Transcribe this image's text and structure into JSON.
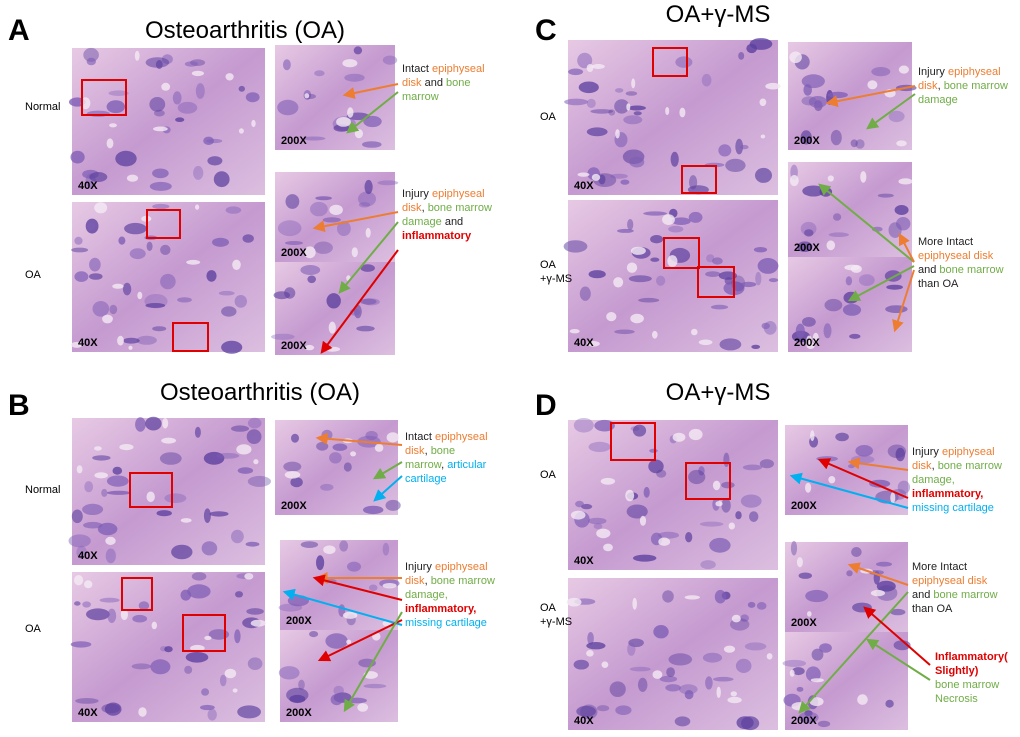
{
  "panels": [
    {
      "letter": "A",
      "title": "Osteoarthritis (OA)",
      "rows": [
        {
          "label": [
            "Normal"
          ],
          "mag": "40X"
        },
        {
          "label": [
            "OA"
          ],
          "mag": "40X"
        }
      ],
      "zooms": [
        {
          "mag": "200X"
        },
        {
          "mag": "200X"
        },
        {
          "mag": "200X"
        }
      ],
      "annotations": [
        {
          "lines": [
            [
              {
                "text": "Intact ",
                "color": "#222222"
              },
              {
                "text": "epiphyseal",
                "color": "#ed7d31"
              }
            ],
            [
              {
                "text": "disk",
                "color": "#ed7d31"
              },
              {
                "text": " and ",
                "color": "#222222"
              },
              {
                "text": "bone",
                "color": "#70ad47"
              }
            ],
            [
              {
                "text": "marrow",
                "color": "#70ad47"
              }
            ]
          ]
        },
        {
          "lines": [
            [
              {
                "text": "Injury ",
                "color": "#222222"
              },
              {
                "text": "epiphyseal",
                "color": "#ed7d31"
              }
            ],
            [
              {
                "text": "disk",
                "color": "#ed7d31"
              },
              {
                "text": ", ",
                "color": "#222222"
              },
              {
                "text": "bone marrow",
                "color": "#70ad47"
              }
            ],
            [
              {
                "text": "damage",
                "color": "#70ad47"
              },
              {
                "text": " and",
                "color": "#222222"
              }
            ],
            [
              {
                "text": "inflammatory",
                "color": "#e00000"
              }
            ]
          ]
        }
      ]
    },
    {
      "letter": "B",
      "title": "Osteoarthritis (OA)",
      "rows": [
        {
          "label": [
            "Normal"
          ],
          "mag": "40X"
        },
        {
          "label": [
            "OA"
          ],
          "mag": "40X"
        }
      ],
      "zooms": [
        {
          "mag": "200X"
        },
        {
          "mag": "200X"
        },
        {
          "mag": "200X"
        }
      ],
      "annotations": [
        {
          "lines": [
            [
              {
                "text": "Intact ",
                "color": "#222222"
              },
              {
                "text": "epiphyseal",
                "color": "#ed7d31"
              }
            ],
            [
              {
                "text": "disk",
                "color": "#ed7d31"
              },
              {
                "text": ", ",
                "color": "#222222"
              },
              {
                "text": "bone",
                "color": "#70ad47"
              }
            ],
            [
              {
                "text": "marrow",
                "color": "#70ad47"
              },
              {
                "text": ", ",
                "color": "#222222"
              },
              {
                "text": "articular",
                "color": "#00b0f0"
              }
            ],
            [
              {
                "text": "cartilage",
                "color": "#00b0f0"
              }
            ]
          ]
        },
        {
          "lines": [
            [
              {
                "text": "Injury ",
                "color": "#222222"
              },
              {
                "text": "epiphyseal",
                "color": "#ed7d31"
              }
            ],
            [
              {
                "text": "disk",
                "color": "#ed7d31"
              },
              {
                "text": ", ",
                "color": "#222222"
              },
              {
                "text": "bone marrow",
                "color": "#70ad47"
              }
            ],
            [
              {
                "text": "damage,",
                "color": "#70ad47"
              }
            ],
            [
              {
                "text": "inflammatory,",
                "color": "#e00000"
              }
            ],
            [
              {
                "text": "missing cartilage",
                "color": "#00b0f0"
              }
            ]
          ]
        }
      ]
    },
    {
      "letter": "C",
      "title": "OA+γ-MS",
      "rows": [
        {
          "label": [
            "OA"
          ],
          "mag": "40X"
        },
        {
          "label": [
            "OA",
            "+γ-MS"
          ],
          "mag": "40X"
        }
      ],
      "zooms": [
        {
          "mag": "200X"
        },
        {
          "mag": "200X"
        },
        {
          "mag": "200X"
        }
      ],
      "annotations": [
        {
          "lines": [
            [
              {
                "text": "Injury ",
                "color": "#222222"
              },
              {
                "text": "epiphyseal",
                "color": "#ed7d31"
              }
            ],
            [
              {
                "text": "disk",
                "color": "#ed7d31"
              },
              {
                "text": ", ",
                "color": "#222222"
              },
              {
                "text": "bone marrow",
                "color": "#70ad47"
              }
            ],
            [
              {
                "text": "damage",
                "color": "#70ad47"
              }
            ]
          ]
        },
        {
          "lines": [
            [
              {
                "text": "More Intact",
                "color": "#222222"
              }
            ],
            [
              {
                "text": "epiphyseal disk",
                "color": "#ed7d31"
              }
            ],
            [
              {
                "text": "and ",
                "color": "#222222"
              },
              {
                "text": "bone marrow",
                "color": "#70ad47"
              }
            ],
            [
              {
                "text": "than OA",
                "color": "#222222"
              }
            ]
          ]
        }
      ]
    },
    {
      "letter": "D",
      "title": "OA+γ-MS",
      "rows": [
        {
          "label": [
            "OA"
          ],
          "mag": "40X"
        },
        {
          "label": [
            "OA",
            "+γ-MS"
          ],
          "mag": "40X"
        }
      ],
      "zooms": [
        {
          "mag": "200X"
        },
        {
          "mag": "200X"
        },
        {
          "mag": "200X"
        }
      ],
      "annotations": [
        {
          "lines": [
            [
              {
                "text": "Injury ",
                "color": "#222222"
              },
              {
                "text": "epiphyseal",
                "color": "#ed7d31"
              }
            ],
            [
              {
                "text": "disk",
                "color": "#ed7d31"
              },
              {
                "text": ", ",
                "color": "#222222"
              },
              {
                "text": "bone marrow",
                "color": "#70ad47"
              }
            ],
            [
              {
                "text": "damage,",
                "color": "#70ad47"
              }
            ],
            [
              {
                "text": "inflammatory,",
                "color": "#e00000"
              }
            ],
            [
              {
                "text": "missing cartilage",
                "color": "#00b0f0"
              }
            ]
          ]
        },
        {
          "lines": [
            [
              {
                "text": "More Intact",
                "color": "#222222"
              }
            ],
            [
              {
                "text": "epiphyseal disk",
                "color": "#ed7d31"
              }
            ],
            [
              {
                "text": "and ",
                "color": "#222222"
              },
              {
                "text": "bone marrow",
                "color": "#70ad47"
              }
            ],
            [
              {
                "text": "than OA",
                "color": "#222222"
              }
            ]
          ]
        },
        {
          "lines": [
            [
              {
                "text": "Inflammatory(",
                "color": "#e00000"
              }
            ],
            [
              {
                "text": "Slightly)",
                "color": "#e00000"
              }
            ],
            [
              {
                "text": "bone marrow",
                "color": "#70ad47"
              }
            ],
            [
              {
                "text": "Necrosis",
                "color": "#70ad47"
              }
            ]
          ]
        }
      ]
    }
  ]
}
